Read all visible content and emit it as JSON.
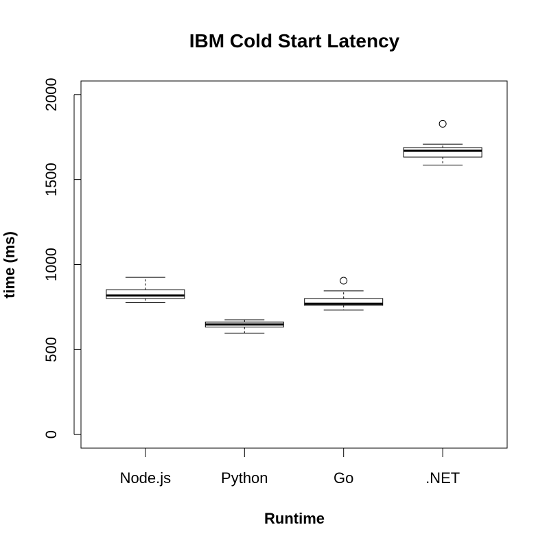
{
  "chart_data": {
    "type": "boxplot",
    "title": "IBM Cold Start Latency",
    "xlabel": "Runtime",
    "ylabel": "time (ms)",
    "ylim": [
      -80,
      2080
    ],
    "yticks": [
      0,
      500,
      1000,
      1500,
      2000
    ],
    "grid": false,
    "categories": [
      "Node.js",
      "Python",
      "Go",
      ".NET"
    ],
    "boxes": [
      {
        "category": "Node.js",
        "min": 778,
        "q1": 800,
        "median": 818,
        "q3": 852,
        "max": 925,
        "outliers": []
      },
      {
        "category": "Python",
        "min": 597,
        "q1": 632,
        "median": 647,
        "q3": 662,
        "max": 675,
        "outliers": []
      },
      {
        "category": "Go",
        "min": 732,
        "q1": 760,
        "median": 770,
        "q3": 800,
        "max": 845,
        "outliers": [
          905
        ]
      },
      {
        "category": ".NET",
        "min": 1585,
        "q1": 1632,
        "median": 1670,
        "q3": 1688,
        "max": 1708,
        "outliers": [
          1828
        ]
      }
    ]
  }
}
